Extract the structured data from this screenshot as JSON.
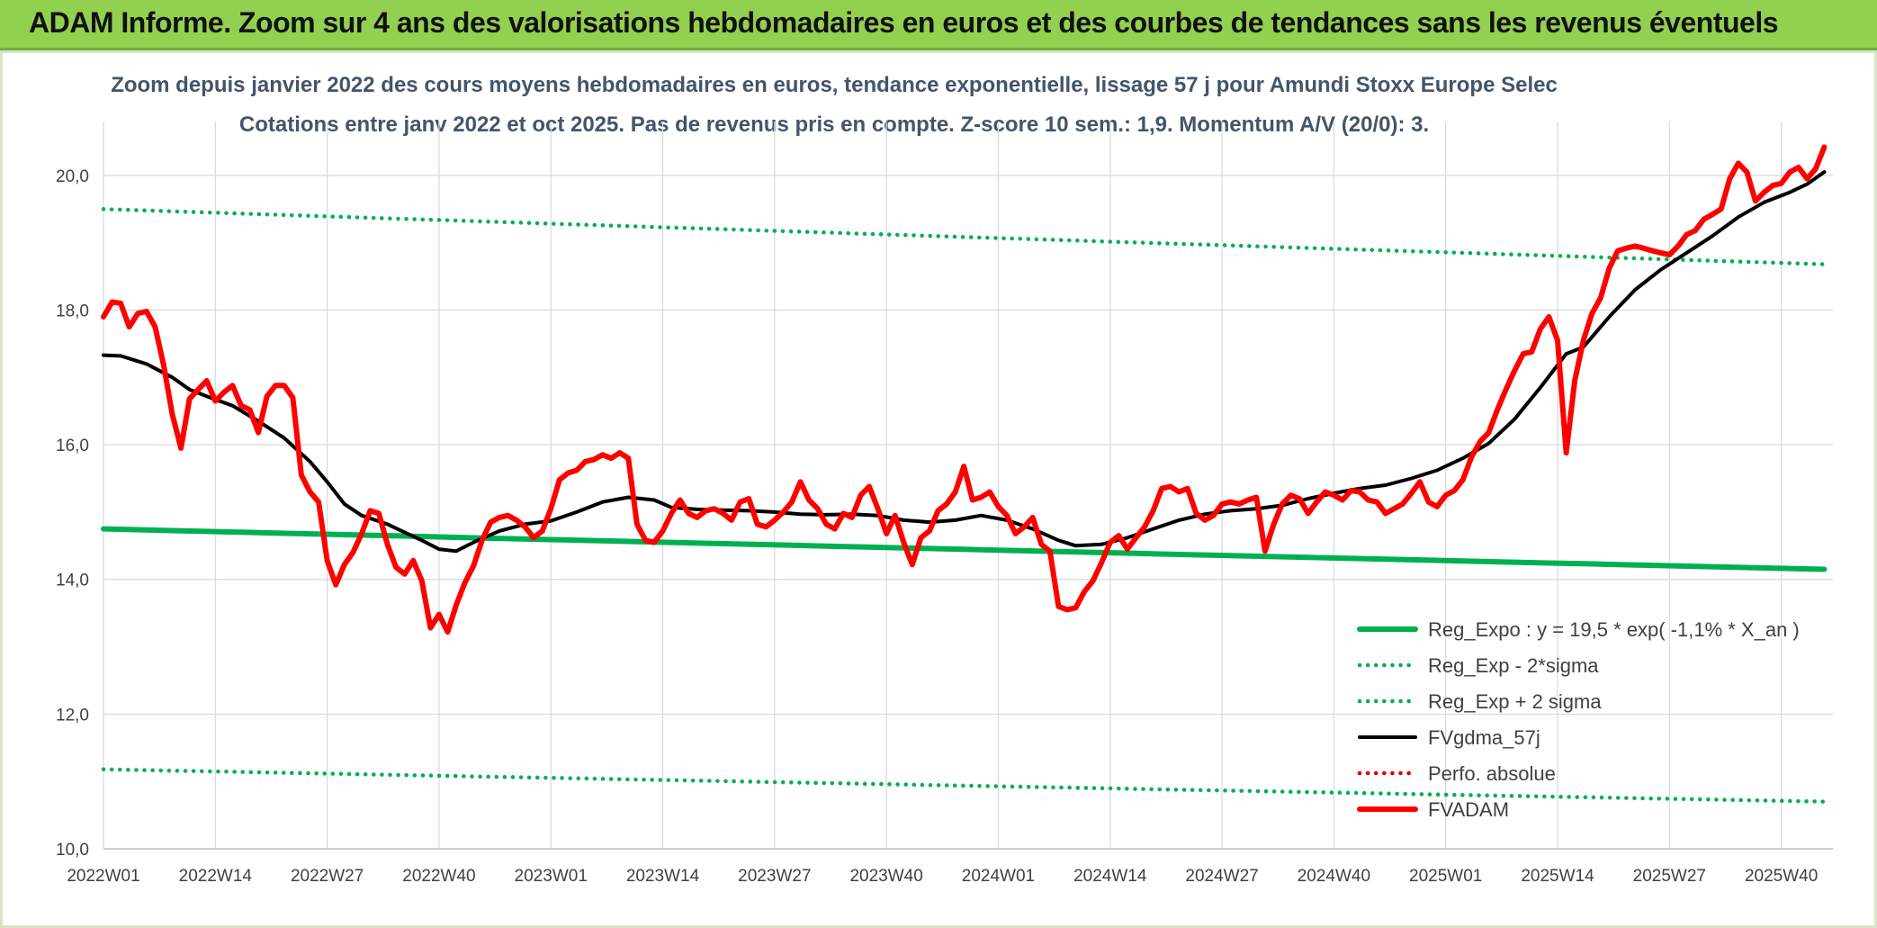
{
  "header": {
    "title": "ADAM Informe. Zoom sur 4 ans des valorisations hebdomadaires en euros et des courbes de tendances sans les revenus éventuels"
  },
  "colors": {
    "banner": "#92d050",
    "regression": "#00b050",
    "sigma": "#00b050",
    "moving_average": "#000000",
    "perfo": "#e00000",
    "fvadam": "#ff0000",
    "grid": "#d9d9d9",
    "title_text": "#44546a"
  },
  "chart_data": {
    "type": "line",
    "title": "Zoom depuis janvier 2022 des cours moyens hebdomadaires en euros, tendance exponentielle, lissage 57 j pour Amundi Stoxx Europe Selec",
    "subtitle": "Cotations entre janv 2022 et oct 2025. Pas de revenus pris en compte. Z-score 10 sem.: 1,9. Momentum A/V (20/0): 3.",
    "xlabel": "",
    "ylabel": "",
    "ylim": [
      10,
      20.8
    ],
    "y_ticks": [
      "10,0",
      "12,0",
      "14,0",
      "16,0",
      "18,0",
      "20,0"
    ],
    "x_ticks": [
      "2022W01",
      "2022W14",
      "2022W27",
      "2022W40",
      "2023W01",
      "2023W14",
      "2023W27",
      "2023W40",
      "2024W01",
      "2024W14",
      "2024W27",
      "2024W40",
      "2025W01",
      "2025W14",
      "2025W27",
      "2025W40"
    ],
    "x_tick_index": [
      0,
      13,
      26,
      39,
      52,
      65,
      78,
      91,
      104,
      117,
      130,
      143,
      156,
      169,
      182,
      195
    ],
    "n_weeks": 201,
    "grid": true,
    "legend_position": "bottom-right",
    "series": [
      {
        "name": "Reg_Expo : y = 19,5 * exp( -1,1% *  X_an )",
        "style": "solid-thick",
        "start": 14.75,
        "end": 14.15
      },
      {
        "name": "Reg_Exp - 2*sigma",
        "style": "dotted",
        "start": 11.18,
        "end": 10.7
      },
      {
        "name": "Reg_Exp + 2 sigma",
        "style": "dotted",
        "start": 19.5,
        "end": 18.68
      },
      {
        "name": "FVgdma_57j",
        "style": "solid",
        "points": [
          [
            0,
            17.33
          ],
          [
            2,
            17.32
          ],
          [
            5,
            17.2
          ],
          [
            8,
            17.0
          ],
          [
            10,
            16.82
          ],
          [
            12,
            16.72
          ],
          [
            15,
            16.58
          ],
          [
            18,
            16.35
          ],
          [
            21,
            16.1
          ],
          [
            24,
            15.75
          ],
          [
            26,
            15.45
          ],
          [
            28,
            15.12
          ],
          [
            30,
            14.95
          ],
          [
            33,
            14.82
          ],
          [
            35,
            14.7
          ],
          [
            37,
            14.58
          ],
          [
            39,
            14.45
          ],
          [
            41,
            14.42
          ],
          [
            43,
            14.55
          ],
          [
            46,
            14.72
          ],
          [
            49,
            14.82
          ],
          [
            52,
            14.87
          ],
          [
            55,
            15.0
          ],
          [
            58,
            15.15
          ],
          [
            61,
            15.22
          ],
          [
            64,
            15.18
          ],
          [
            66,
            15.07
          ],
          [
            69,
            15.04
          ],
          [
            72,
            15.03
          ],
          [
            75,
            15.02
          ],
          [
            78,
            15.0
          ],
          [
            81,
            14.97
          ],
          [
            84,
            14.96
          ],
          [
            87,
            14.97
          ],
          [
            90,
            14.95
          ],
          [
            93,
            14.88
          ],
          [
            96,
            14.85
          ],
          [
            99,
            14.88
          ],
          [
            102,
            14.95
          ],
          [
            105,
            14.88
          ],
          [
            108,
            14.75
          ],
          [
            111,
            14.58
          ],
          [
            113,
            14.5
          ],
          [
            116,
            14.52
          ],
          [
            119,
            14.62
          ],
          [
            122,
            14.75
          ],
          [
            125,
            14.88
          ],
          [
            128,
            14.97
          ],
          [
            131,
            15.02
          ],
          [
            134,
            15.05
          ],
          [
            137,
            15.1
          ],
          [
            140,
            15.2
          ],
          [
            143,
            15.28
          ],
          [
            146,
            15.35
          ],
          [
            149,
            15.4
          ],
          [
            152,
            15.5
          ],
          [
            155,
            15.62
          ],
          [
            158,
            15.8
          ],
          [
            161,
            16.02
          ],
          [
            164,
            16.38
          ],
          [
            167,
            16.85
          ],
          [
            170,
            17.35
          ],
          [
            172,
            17.45
          ],
          [
            175,
            17.9
          ],
          [
            178,
            18.3
          ],
          [
            181,
            18.6
          ],
          [
            184,
            18.85
          ],
          [
            187,
            19.1
          ],
          [
            190,
            19.38
          ],
          [
            193,
            19.6
          ],
          [
            196,
            19.75
          ],
          [
            198,
            19.87
          ],
          [
            200,
            20.05
          ]
        ]
      },
      {
        "name": "Perfo. absolue",
        "style": "dotted",
        "points": []
      },
      {
        "name": "FVADAM",
        "style": "solid-thick",
        "points": [
          [
            0,
            17.9
          ],
          [
            1,
            18.12
          ],
          [
            2,
            18.1
          ],
          [
            3,
            17.75
          ],
          [
            4,
            17.95
          ],
          [
            5,
            17.98
          ],
          [
            6,
            17.75
          ],
          [
            7,
            17.18
          ],
          [
            8,
            16.45
          ],
          [
            9,
            15.95
          ],
          [
            10,
            16.68
          ],
          [
            11,
            16.82
          ],
          [
            12,
            16.95
          ],
          [
            13,
            16.65
          ],
          [
            14,
            16.78
          ],
          [
            15,
            16.88
          ],
          [
            16,
            16.58
          ],
          [
            17,
            16.52
          ],
          [
            18,
            16.18
          ],
          [
            19,
            16.72
          ],
          [
            20,
            16.88
          ],
          [
            21,
            16.88
          ],
          [
            22,
            16.7
          ],
          [
            23,
            15.55
          ],
          [
            24,
            15.3
          ],
          [
            25,
            15.15
          ],
          [
            26,
            14.28
          ],
          [
            27,
            13.92
          ],
          [
            28,
            14.22
          ],
          [
            29,
            14.4
          ],
          [
            30,
            14.68
          ],
          [
            31,
            15.02
          ],
          [
            32,
            14.98
          ],
          [
            33,
            14.52
          ],
          [
            34,
            14.18
          ],
          [
            35,
            14.08
          ],
          [
            36,
            14.28
          ],
          [
            37,
            13.98
          ],
          [
            38,
            13.28
          ],
          [
            39,
            13.48
          ],
          [
            40,
            13.22
          ],
          [
            41,
            13.62
          ],
          [
            42,
            13.95
          ],
          [
            43,
            14.2
          ],
          [
            44,
            14.58
          ],
          [
            45,
            14.85
          ],
          [
            46,
            14.92
          ],
          [
            47,
            14.95
          ],
          [
            48,
            14.88
          ],
          [
            49,
            14.78
          ],
          [
            50,
            14.62
          ],
          [
            51,
            14.72
          ],
          [
            52,
            15.05
          ],
          [
            53,
            15.48
          ],
          [
            54,
            15.58
          ],
          [
            55,
            15.62
          ],
          [
            56,
            15.75
          ],
          [
            57,
            15.78
          ],
          [
            58,
            15.85
          ],
          [
            59,
            15.8
          ],
          [
            60,
            15.88
          ],
          [
            61,
            15.8
          ],
          [
            62,
            14.82
          ],
          [
            63,
            14.58
          ],
          [
            64,
            14.55
          ],
          [
            65,
            14.72
          ],
          [
            66,
            14.98
          ],
          [
            67,
            15.18
          ],
          [
            68,
            14.98
          ],
          [
            69,
            14.92
          ],
          [
            70,
            15.02
          ],
          [
            71,
            15.05
          ],
          [
            72,
            14.98
          ],
          [
            73,
            14.88
          ],
          [
            74,
            15.15
          ],
          [
            75,
            15.2
          ],
          [
            76,
            14.82
          ],
          [
            77,
            14.78
          ],
          [
            78,
            14.88
          ],
          [
            79,
            15.0
          ],
          [
            80,
            15.15
          ],
          [
            81,
            15.45
          ],
          [
            82,
            15.18
          ],
          [
            83,
            15.05
          ],
          [
            84,
            14.82
          ],
          [
            85,
            14.75
          ],
          [
            86,
            14.98
          ],
          [
            87,
            14.92
          ],
          [
            88,
            15.25
          ],
          [
            89,
            15.38
          ],
          [
            90,
            15.05
          ],
          [
            91,
            14.68
          ],
          [
            92,
            14.95
          ],
          [
            93,
            14.55
          ],
          [
            94,
            14.22
          ],
          [
            95,
            14.62
          ],
          [
            96,
            14.72
          ],
          [
            97,
            15.02
          ],
          [
            98,
            15.12
          ],
          [
            99,
            15.3
          ],
          [
            100,
            15.68
          ],
          [
            101,
            15.18
          ],
          [
            102,
            15.22
          ],
          [
            103,
            15.3
          ],
          [
            104,
            15.08
          ],
          [
            105,
            14.95
          ],
          [
            106,
            14.68
          ],
          [
            107,
            14.78
          ],
          [
            108,
            14.92
          ],
          [
            109,
            14.52
          ],
          [
            110,
            14.42
          ],
          [
            111,
            13.6
          ],
          [
            112,
            13.55
          ],
          [
            113,
            13.58
          ],
          [
            114,
            13.82
          ],
          [
            115,
            13.98
          ],
          [
            116,
            14.25
          ],
          [
            117,
            14.55
          ],
          [
            118,
            14.65
          ],
          [
            119,
            14.45
          ],
          [
            120,
            14.62
          ],
          [
            121,
            14.78
          ],
          [
            122,
            15.02
          ],
          [
            123,
            15.35
          ],
          [
            124,
            15.38
          ],
          [
            125,
            15.3
          ],
          [
            126,
            15.35
          ],
          [
            127,
            14.98
          ],
          [
            128,
            14.88
          ],
          [
            129,
            14.95
          ],
          [
            130,
            15.12
          ],
          [
            131,
            15.15
          ],
          [
            132,
            15.12
          ],
          [
            133,
            15.18
          ],
          [
            134,
            15.22
          ],
          [
            135,
            14.42
          ],
          [
            136,
            14.82
          ],
          [
            137,
            15.12
          ],
          [
            138,
            15.25
          ],
          [
            139,
            15.2
          ],
          [
            140,
            14.98
          ],
          [
            141,
            15.15
          ],
          [
            142,
            15.3
          ],
          [
            143,
            15.25
          ],
          [
            144,
            15.18
          ],
          [
            145,
            15.32
          ],
          [
            146,
            15.3
          ],
          [
            147,
            15.18
          ],
          [
            148,
            15.15
          ],
          [
            149,
            14.98
          ],
          [
            150,
            15.05
          ],
          [
            151,
            15.12
          ],
          [
            152,
            15.28
          ],
          [
            153,
            15.45
          ],
          [
            154,
            15.15
          ],
          [
            155,
            15.08
          ],
          [
            156,
            15.25
          ],
          [
            157,
            15.32
          ],
          [
            158,
            15.48
          ],
          [
            159,
            15.82
          ],
          [
            160,
            16.05
          ],
          [
            161,
            16.18
          ],
          [
            162,
            16.52
          ],
          [
            163,
            16.82
          ],
          [
            164,
            17.1
          ],
          [
            165,
            17.35
          ],
          [
            166,
            17.38
          ],
          [
            167,
            17.72
          ],
          [
            168,
            17.9
          ],
          [
            169,
            17.55
          ],
          [
            170,
            15.88
          ],
          [
            171,
            16.95
          ],
          [
            172,
            17.55
          ],
          [
            173,
            17.95
          ],
          [
            174,
            18.18
          ],
          [
            175,
            18.62
          ],
          [
            176,
            18.88
          ],
          [
            177,
            18.92
          ],
          [
            178,
            18.95
          ],
          [
            179,
            18.92
          ],
          [
            180,
            18.88
          ],
          [
            181,
            18.85
          ],
          [
            182,
            18.82
          ],
          [
            183,
            18.95
          ],
          [
            184,
            19.12
          ],
          [
            185,
            19.18
          ],
          [
            186,
            19.35
          ],
          [
            187,
            19.42
          ],
          [
            188,
            19.5
          ],
          [
            189,
            19.95
          ],
          [
            190,
            20.18
          ],
          [
            191,
            20.05
          ],
          [
            192,
            19.62
          ],
          [
            193,
            19.75
          ],
          [
            194,
            19.85
          ],
          [
            195,
            19.88
          ],
          [
            196,
            20.05
          ],
          [
            197,
            20.12
          ],
          [
            198,
            19.95
          ],
          [
            199,
            20.1
          ],
          [
            200,
            20.42
          ]
        ]
      }
    ]
  }
}
